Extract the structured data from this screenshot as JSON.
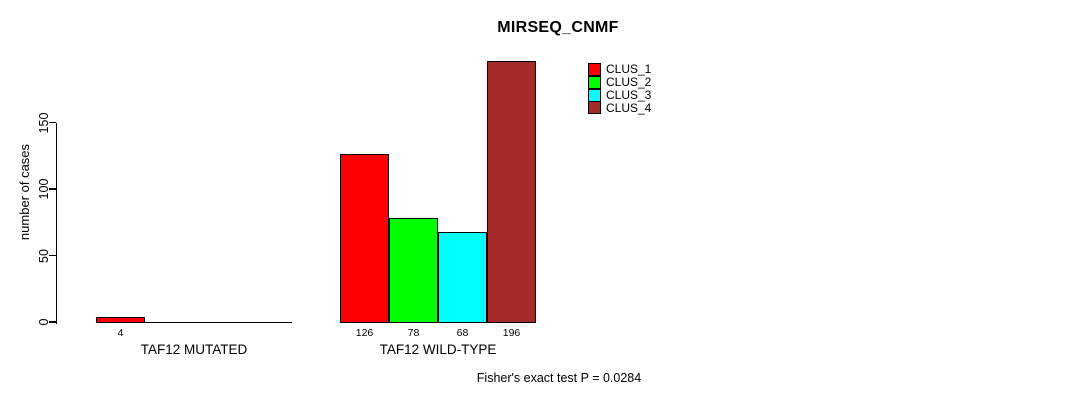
{
  "chart_data": {
    "type": "bar",
    "title": "MIRSEQ_CNMF",
    "ylabel": "number of cases",
    "xlabel": "",
    "yticks": [
      0,
      50,
      100,
      150
    ],
    "ylim": [
      0,
      196
    ],
    "grid": false,
    "legend_position": "top-right-inside",
    "series": [
      "CLUS_1",
      "CLUS_2",
      "CLUS_3",
      "CLUS_4"
    ],
    "series_colors": [
      "#ff0000",
      "#00ff00",
      "#00ffff",
      "#a52a2a"
    ],
    "groups": [
      {
        "label": "TAF12 MUTATED",
        "values": [
          4,
          0,
          0,
          0
        ],
        "bar_labels": [
          "4",
          "",
          "",
          ""
        ]
      },
      {
        "label": "TAF12 WILD-TYPE",
        "values": [
          126,
          78,
          68,
          196
        ],
        "bar_labels": [
          "126",
          "78",
          "68",
          "196"
        ]
      }
    ],
    "annotation": "Fisher's exact test P = 0.0284"
  },
  "colors": {
    "axis": "#000000",
    "text": "#000000",
    "background": "#ffffff"
  }
}
